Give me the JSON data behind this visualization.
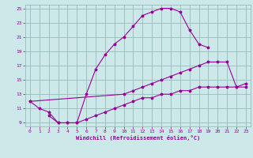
{
  "bg_color": "#cce8e8",
  "grid_color": "#99bbbb",
  "line_color": "#990099",
  "xlabel": "Windchill (Refroidissement éolien,°C)",
  "xmin": -0.5,
  "xmax": 23.5,
  "ymin": 8.5,
  "ymax": 25.5,
  "xticks": [
    0,
    1,
    2,
    3,
    4,
    5,
    6,
    7,
    8,
    9,
    10,
    11,
    12,
    13,
    14,
    15,
    16,
    17,
    18,
    19,
    20,
    21,
    22,
    23
  ],
  "yticks": [
    9,
    11,
    13,
    15,
    17,
    19,
    21,
    23,
    25
  ],
  "line1_x": [
    0,
    1,
    2,
    3,
    4,
    5,
    6,
    7,
    8,
    9,
    10,
    11,
    12,
    13,
    14,
    15,
    16,
    17,
    18,
    19
  ],
  "line1_y": [
    12.0,
    11.0,
    10.5,
    9.0,
    9.0,
    9.0,
    13.0,
    16.5,
    18.5,
    20.0,
    21.0,
    22.5,
    24.0,
    24.5,
    25.0,
    25.0,
    24.5,
    22.0,
    20.0,
    19.5
  ],
  "line2_x": [
    0,
    10,
    11,
    12,
    13,
    14,
    15,
    16,
    17,
    18,
    19,
    20,
    21,
    22,
    23
  ],
  "line2_y": [
    12.0,
    13.0,
    13.5,
    14.0,
    14.5,
    15.0,
    15.5,
    16.0,
    16.5,
    17.0,
    17.5,
    17.5,
    17.5,
    14.0,
    14.0
  ],
  "line3_x": [
    2,
    3,
    4,
    5,
    6,
    7,
    8,
    9,
    10,
    11,
    12,
    13,
    14,
    15,
    16,
    17,
    18,
    19,
    20,
    21,
    22,
    23
  ],
  "line3_y": [
    10.0,
    9.0,
    9.0,
    9.0,
    9.5,
    10.0,
    10.5,
    11.0,
    11.5,
    12.0,
    12.5,
    12.5,
    13.0,
    13.0,
    13.5,
    13.5,
    14.0,
    14.0,
    14.0,
    14.0,
    14.0,
    14.5
  ]
}
